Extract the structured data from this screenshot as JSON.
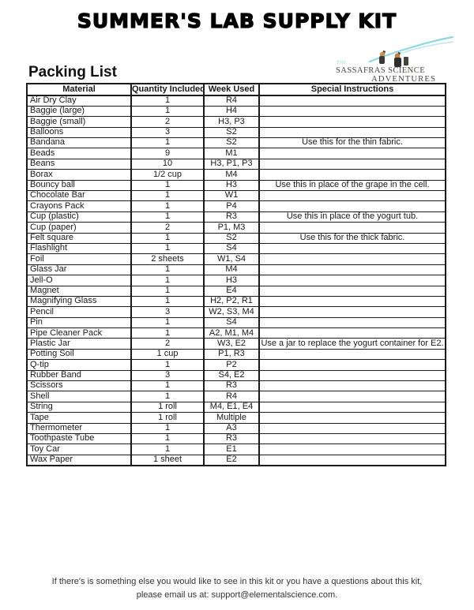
{
  "title": "SUMMER'S LAB SUPPLY KIT",
  "section_heading": "Packing List",
  "logo": {
    "the_label": "THE",
    "name_line1": "SASSAFRAS SCIENCE",
    "name_line2": "ADVENTURES",
    "accent_color": "#8fd9e6",
    "text_color": "#4b4742"
  },
  "table": {
    "headers": [
      "Material",
      "Quantity Included",
      "Week Used",
      "Special Instructions"
    ],
    "rows": [
      [
        "Air Dry Clay",
        "1",
        "R4",
        ""
      ],
      [
        "Baggie (large)",
        "1",
        "H4",
        ""
      ],
      [
        "Baggie (small)",
        "2",
        "H3, P3",
        ""
      ],
      [
        "Balloons",
        "3",
        "S2",
        ""
      ],
      [
        "Bandana",
        "1",
        "S2",
        "Use this for the thin fabric."
      ],
      [
        "Beads",
        "9",
        "M1",
        ""
      ],
      [
        "Beans",
        "10",
        "H3, P1, P3",
        ""
      ],
      [
        "Borax",
        "1/2 cup",
        "M4",
        ""
      ],
      [
        "Bouncy ball",
        "1",
        "H3",
        "Use this in place of the grape in the cell."
      ],
      [
        "Chocolate Bar",
        "1",
        "W1",
        ""
      ],
      [
        "Crayons Pack",
        "1",
        "P4",
        ""
      ],
      [
        "Cup (plastic)",
        "1",
        "R3",
        "Use this in place of the yogurt tub."
      ],
      [
        "Cup (paper)",
        "2",
        "P1, M3",
        ""
      ],
      [
        "Felt square",
        "1",
        "S2",
        "Use this for the thick fabric."
      ],
      [
        "Flashlight",
        "1",
        "S4",
        ""
      ],
      [
        "Foil",
        "2 sheets",
        "W1, S4",
        ""
      ],
      [
        "Glass Jar",
        "1",
        "M4",
        ""
      ],
      [
        "Jell-O",
        "1",
        "H3",
        ""
      ],
      [
        "Magnet",
        "1",
        "E4",
        ""
      ],
      [
        "Magnifying Glass",
        "1",
        "H2, P2, R1",
        ""
      ],
      [
        "Pencil",
        "3",
        "W2, S3, M4",
        ""
      ],
      [
        "Pin",
        "1",
        "S4",
        ""
      ],
      [
        "Pipe Cleaner Pack",
        "1",
        "A2, M1, M4",
        ""
      ],
      [
        "Plastic Jar",
        "2",
        "W3, E2",
        "Use a jar to replace the yogurt container for E2."
      ],
      [
        "Potting Soil",
        "1 cup",
        "P1, R3",
        ""
      ],
      [
        "Q-tip",
        "1",
        "P2",
        ""
      ],
      [
        "Rubber Band",
        "3",
        "S4, E2",
        ""
      ],
      [
        "Scissors",
        "1",
        "R3",
        ""
      ],
      [
        "Shell",
        "1",
        "R4",
        ""
      ],
      [
        "String",
        "1 roll",
        "M4, E1, E4",
        ""
      ],
      [
        "Tape",
        "1 roll",
        "Multiple",
        ""
      ],
      [
        "Thermometer",
        "1",
        "A3",
        ""
      ],
      [
        "Toothpaste Tube",
        "1",
        "R3",
        ""
      ],
      [
        "Toy Car",
        "1",
        "E1",
        ""
      ],
      [
        "Wax Paper",
        "1 sheet",
        "E2",
        ""
      ]
    ]
  },
  "footer": {
    "line1": "If there's is something else you would like to see in this kit or you have a questions about this kit,",
    "line2": "please email us at: support@elementalscience.com."
  }
}
